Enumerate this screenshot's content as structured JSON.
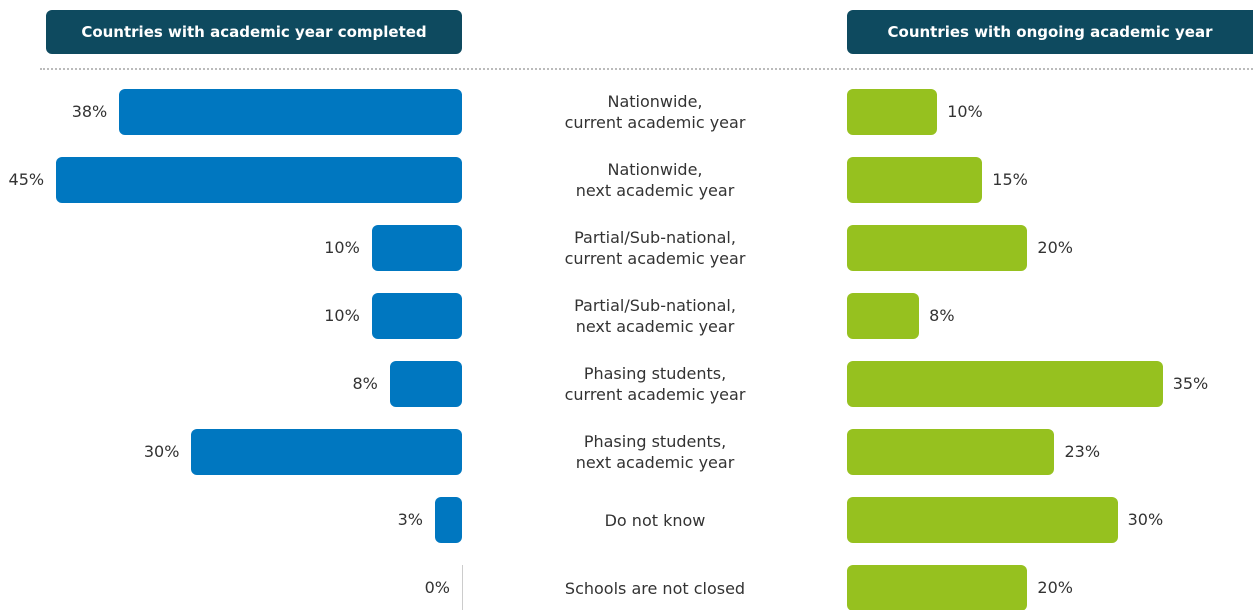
{
  "chart_data": {
    "type": "butterfly",
    "categories": [
      "Nationwide,\ncurrent academic year",
      "Nationwide,\nnext academic year",
      "Partial/Sub-national,\ncurrent academic year",
      "Partial/Sub-national,\nnext academic year",
      "Phasing students,\ncurrent academic year",
      "Phasing students,\nnext academic year",
      "Do not know",
      "Schools are not closed"
    ],
    "series": [
      {
        "name": "Countries with academic year completed",
        "color": "#0077c0",
        "side": "left",
        "values": [
          38,
          45,
          10,
          10,
          8,
          30,
          3,
          0
        ],
        "value_labels": [
          "38%",
          "45%",
          "10%",
          "10%",
          "8%",
          "30%",
          "3%",
          "0%"
        ]
      },
      {
        "name": "Countries with ongoing academic year",
        "color": "#96c11f",
        "side": "right",
        "values": [
          10,
          15,
          20,
          8,
          35,
          23,
          30,
          20
        ],
        "value_labels": [
          "10%",
          "15%",
          "20%",
          "8%",
          "35%",
          "23%",
          "30%",
          "20%"
        ]
      }
    ]
  }
}
